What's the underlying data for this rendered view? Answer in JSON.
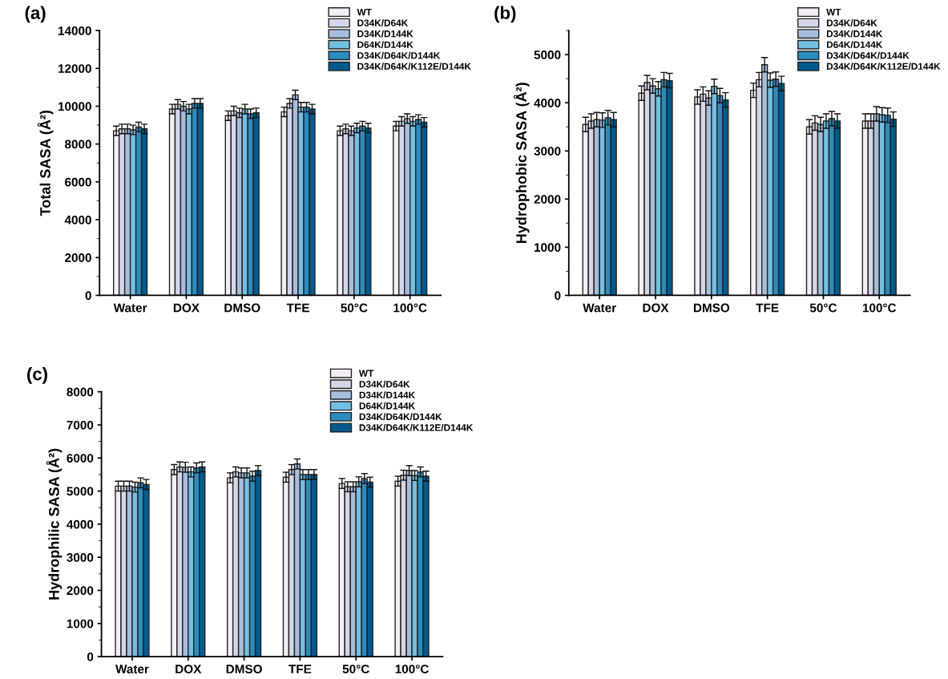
{
  "chart_data": [
    {
      "type": "bar",
      "title": "(a)",
      "ylabel": "Total SASA (Å²)",
      "categories": [
        "Water",
        "DOX",
        "DMSO",
        "TFE",
        "50°C",
        "100°C"
      ],
      "ylim": [
        0,
        14000
      ],
      "yticks": [
        0,
        2000,
        4000,
        6000,
        8000,
        10000,
        12000,
        14000
      ],
      "legend": "top right",
      "grid": false,
      "series": [
        {
          "name": "WT",
          "color": "#f3eef6",
          "values": [
            8700,
            9850,
            9500,
            9700,
            8700,
            8950
          ],
          "errors": [
            250,
            250,
            250,
            250,
            250,
            250
          ]
        },
        {
          "name": "D34K/D64K",
          "color": "#d5d6e8",
          "values": [
            8800,
            10100,
            9750,
            10150,
            8800,
            9200
          ],
          "errors": [
            250,
            250,
            250,
            250,
            250,
            250
          ]
        },
        {
          "name": "D34K/D144K",
          "color": "#a6bddb",
          "values": [
            8800,
            10000,
            9650,
            10600,
            8700,
            9350
          ],
          "errors": [
            250,
            250,
            250,
            250,
            250,
            250
          ]
        },
        {
          "name": "D64K/D144K",
          "color": "#74bfe0",
          "values": [
            8750,
            9850,
            9850,
            9950,
            8850,
            9200
          ],
          "errors": [
            250,
            250,
            250,
            250,
            250,
            250
          ]
        },
        {
          "name": "D34K/D64K/D144K",
          "color": "#2b8cbe",
          "values": [
            8900,
            10150,
            9600,
            9950,
            8950,
            9300
          ],
          "errors": [
            250,
            250,
            250,
            250,
            250,
            250
          ]
        },
        {
          "name": "D34K/D64K/K112E/D144K",
          "color": "#045a8d",
          "values": [
            8800,
            10150,
            9650,
            9850,
            8850,
            9150
          ],
          "errors": [
            250,
            250,
            250,
            250,
            250,
            250
          ]
        }
      ]
    },
    {
      "type": "bar",
      "title": "(b)",
      "ylabel": "Hydrophobic SASA (Å²)",
      "categories": [
        "Water",
        "DOX",
        "DMSO",
        "TFE",
        "50°C",
        "100°C"
      ],
      "ylim": [
        0,
        5500
      ],
      "yticks": [
        0,
        1000,
        2000,
        3000,
        4000,
        5000
      ],
      "legend": "top right",
      "grid": false,
      "series": [
        {
          "name": "WT",
          "color": "#f3eef6",
          "values": [
            3550,
            4200,
            4120,
            4260,
            3500,
            3620
          ],
          "errors": [
            150,
            150,
            150,
            150,
            150,
            150
          ]
        },
        {
          "name": "D34K/D64K",
          "color": "#d5d6e8",
          "values": [
            3620,
            4420,
            4180,
            4480,
            3580,
            3620
          ],
          "errors": [
            150,
            150,
            150,
            150,
            150,
            150
          ]
        },
        {
          "name": "D34K/D144K",
          "color": "#a6bddb",
          "values": [
            3650,
            4350,
            4100,
            4790,
            3550,
            3770
          ],
          "errors": [
            150,
            150,
            150,
            150,
            150,
            150
          ]
        },
        {
          "name": "D64K/D144K",
          "color": "#74bfe0",
          "values": [
            3640,
            4290,
            4340,
            4470,
            3620,
            3750
          ],
          "errors": [
            150,
            150,
            150,
            150,
            150,
            150
          ]
        },
        {
          "name": "D34K/D64K/D144K",
          "color": "#2b8cbe",
          "values": [
            3690,
            4480,
            4150,
            4490,
            3670,
            3740
          ],
          "errors": [
            150,
            150,
            150,
            150,
            150,
            150
          ]
        },
        {
          "name": "D34K/D64K/K112E/D144K",
          "color": "#045a8d",
          "values": [
            3650,
            4460,
            4060,
            4400,
            3620,
            3660
          ],
          "errors": [
            150,
            150,
            150,
            150,
            150,
            150
          ]
        }
      ]
    },
    {
      "type": "bar",
      "title": "(c)",
      "ylabel": "Hydrophilic SASA (Å²)",
      "categories": [
        "Water",
        "DOX",
        "DMSO",
        "TFE",
        "50°C",
        "100°C"
      ],
      "ylim": [
        0,
        8000
      ],
      "yticks": [
        0,
        1000,
        2000,
        3000,
        4000,
        5000,
        6000,
        7000,
        8000
      ],
      "legend": "top right",
      "grid": false,
      "series": [
        {
          "name": "WT",
          "color": "#f3eef6",
          "values": [
            5150,
            5650,
            5400,
            5420,
            5230,
            5300
          ],
          "errors": [
            150,
            150,
            150,
            150,
            150,
            150
          ]
        },
        {
          "name": "D34K/D64K",
          "color": "#d5d6e8",
          "values": [
            5150,
            5730,
            5580,
            5650,
            5130,
            5480
          ],
          "errors": [
            150,
            150,
            150,
            150,
            150,
            150
          ]
        },
        {
          "name": "D34K/D144K",
          "color": "#a6bddb",
          "values": [
            5150,
            5720,
            5550,
            5820,
            5130,
            5620
          ],
          "errors": [
            150,
            150,
            150,
            150,
            150,
            150
          ]
        },
        {
          "name": "D64K/D144K",
          "color": "#74bfe0",
          "values": [
            5120,
            5580,
            5550,
            5500,
            5280,
            5470
          ],
          "errors": [
            150,
            150,
            150,
            150,
            150,
            150
          ]
        },
        {
          "name": "D34K/D64K/D144K",
          "color": "#2b8cbe",
          "values": [
            5250,
            5700,
            5450,
            5500,
            5380,
            5580
          ],
          "errors": [
            150,
            150,
            150,
            150,
            150,
            150
          ]
        },
        {
          "name": "D34K/D64K/K112E/D144K",
          "color": "#045a8d",
          "values": [
            5200,
            5730,
            5620,
            5500,
            5270,
            5450
          ],
          "errors": [
            150,
            150,
            150,
            150,
            150,
            150
          ]
        }
      ]
    }
  ]
}
